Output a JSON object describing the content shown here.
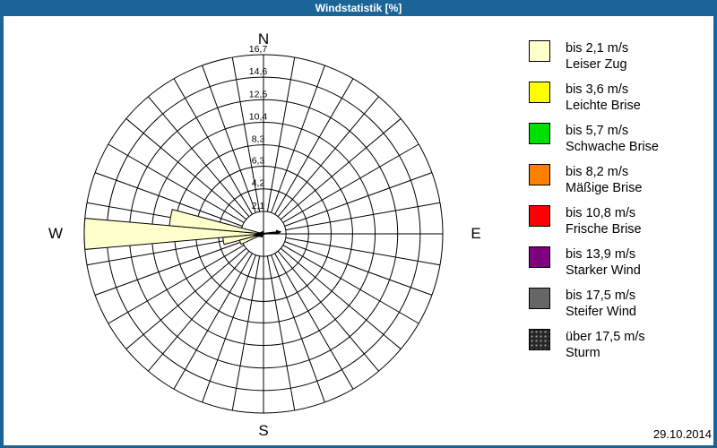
{
  "window": {
    "title": "Windstatistik [%]",
    "date": "29.10.2014",
    "frame_color": "#1B6498",
    "background": "#FFFFFF"
  },
  "chart_data": {
    "type": "wind-rose",
    "unit": "%",
    "title": "Windstatistik [%]",
    "compass_labels": {
      "north": "N",
      "east": "E",
      "south": "S",
      "west": "W"
    },
    "num_directions": 36,
    "sector_width_deg": 10,
    "grid": {
      "color": "#000000",
      "shown": true
    },
    "ring_ticks": {
      "values": [
        2.1,
        4.2,
        6.3,
        8.3,
        10.4,
        12.5,
        14.6,
        16.7
      ],
      "labels": [
        "2,1",
        "4,2",
        "6,3",
        "8,3",
        "10,4",
        "12,5",
        "14,6",
        "16,7"
      ]
    },
    "max_value": 16.7,
    "series": [
      {
        "name": "bis 2,1 m/s (Leiser Zug)",
        "color": "#FFFFCC",
        "petals": [
          {
            "direction_deg": 250,
            "value": 2.3
          },
          {
            "direction_deg": 260,
            "value": 3.8
          },
          {
            "direction_deg": 270,
            "value": 16.7
          },
          {
            "direction_deg": 280,
            "value": 8.8
          }
        ]
      }
    ],
    "mean_direction_marker": {
      "shown": true,
      "color": "#000000"
    }
  },
  "legend": {
    "items": [
      {
        "color": "#FFFFCC",
        "speed": "bis 2,1 m/s",
        "name": "Leiser Zug"
      },
      {
        "color": "#FFFF00",
        "speed": "bis 3,6 m/s",
        "name": "Leichte Brise"
      },
      {
        "color": "#00E000",
        "speed": "bis 5,7 m/s",
        "name": "Schwache Brise"
      },
      {
        "color": "#FF8000",
        "speed": "bis 8,2 m/s",
        "name": "Mäßige Brise"
      },
      {
        "color": "#FF0000",
        "speed": "bis 10,8 m/s",
        "name": "Frische Brise"
      },
      {
        "color": "#800080",
        "speed": "bis 13,9 m/s",
        "name": "Starker Wind"
      },
      {
        "color": "#666666",
        "speed": "bis 17,5 m/s",
        "name": "Steifer Wind"
      },
      {
        "color": "#262626",
        "speed": "über 17,5 m/s",
        "name": "Sturm",
        "pattern": "dots"
      }
    ]
  }
}
